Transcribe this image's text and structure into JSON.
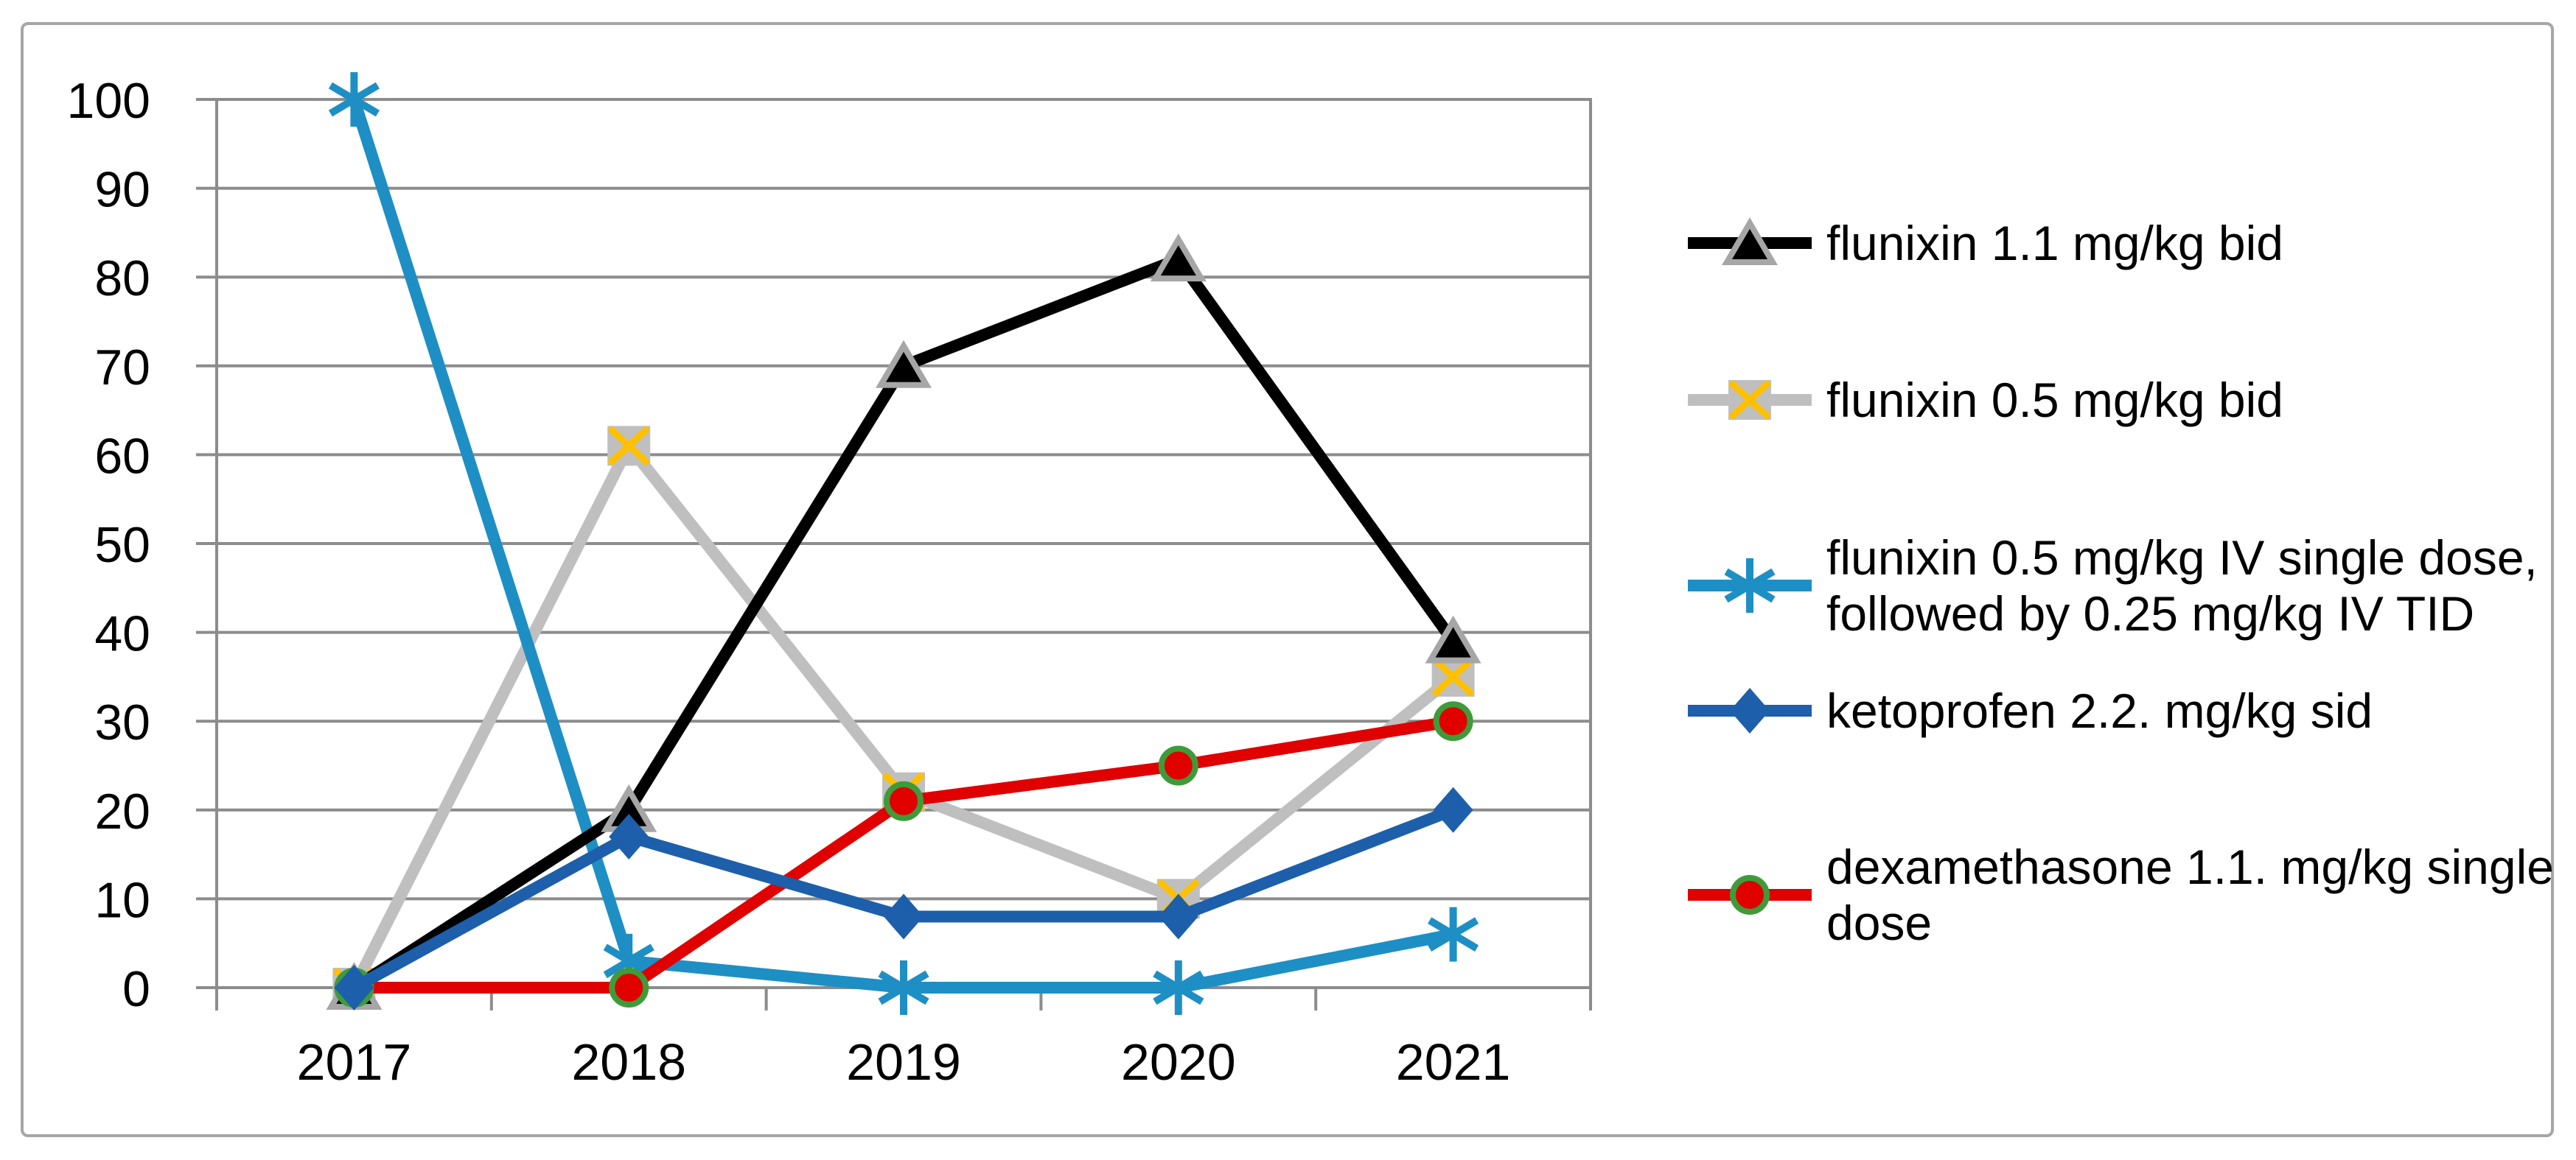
{
  "chart_data": {
    "type": "line",
    "x": [
      "2017",
      "2018",
      "2019",
      "2020",
      "2021"
    ],
    "ylim": [
      0,
      100
    ],
    "ytick_step": 10,
    "y_tick_labels": [
      "0",
      "10",
      "20",
      "30",
      "40",
      "50",
      "60",
      "70",
      "80",
      "90",
      "100"
    ],
    "grid": true,
    "legend_position": "right",
    "series": [
      {
        "name": "flunixin 1.1 mg/kg bid",
        "legend_lines": [
          "flunixin 1.1 mg/kg bid"
        ],
        "values": [
          0,
          20,
          70,
          82,
          39
        ],
        "color": "#000000",
        "marker": "triangle",
        "marker_fill": "#000000",
        "marker_stroke": "#A6A6A6"
      },
      {
        "name": "flunixin 0.5 mg/kg bid",
        "legend_lines": [
          "flunixin 0.5 mg/kg bid"
        ],
        "values": [
          0,
          61,
          22,
          10,
          35
        ],
        "color": "#BFBFBF",
        "marker": "x-square",
        "marker_fill": "#BFBFBF",
        "marker_stroke": "#FFC000"
      },
      {
        "name": "flunixin 0.5 mg/kg IV single dose, followed by 0.25 mg/kg IV TID",
        "legend_lines": [
          "flunixin 0.5 mg/kg IV single dose,",
          "followed by 0.25 mg/kg IV TID"
        ],
        "values": [
          100,
          3,
          0,
          0,
          6
        ],
        "color": "#1E8FC4",
        "marker": "asterisk",
        "marker_fill": "#1E8FC4",
        "marker_stroke": "#1E8FC4"
      },
      {
        "name": "ketoprofen 2.2. mg/kg sid",
        "legend_lines": [
          "ketoprofen 2.2. mg/kg sid"
        ],
        "values": [
          0,
          17,
          8,
          8,
          20
        ],
        "color": "#1D5FAA",
        "marker": "diamond",
        "marker_fill": "#1D5FAA",
        "marker_stroke": "#1D5FAA"
      },
      {
        "name": "dexamethasone 1.1. mg/kg single dose",
        "legend_lines": [
          "dexamethasone 1.1. mg/kg single",
          "dose"
        ],
        "values": [
          0,
          0,
          21,
          25,
          30
        ],
        "color": "#E00000",
        "marker": "circle",
        "marker_fill": "#E00000",
        "marker_stroke": "#3F9B3A"
      }
    ]
  },
  "colors": {
    "background": "#FFFFFF",
    "frame_border": "#A6A6A6",
    "gridline": "#8C8C8C",
    "axis": "#8C8C8C",
    "text": "#000000"
  }
}
